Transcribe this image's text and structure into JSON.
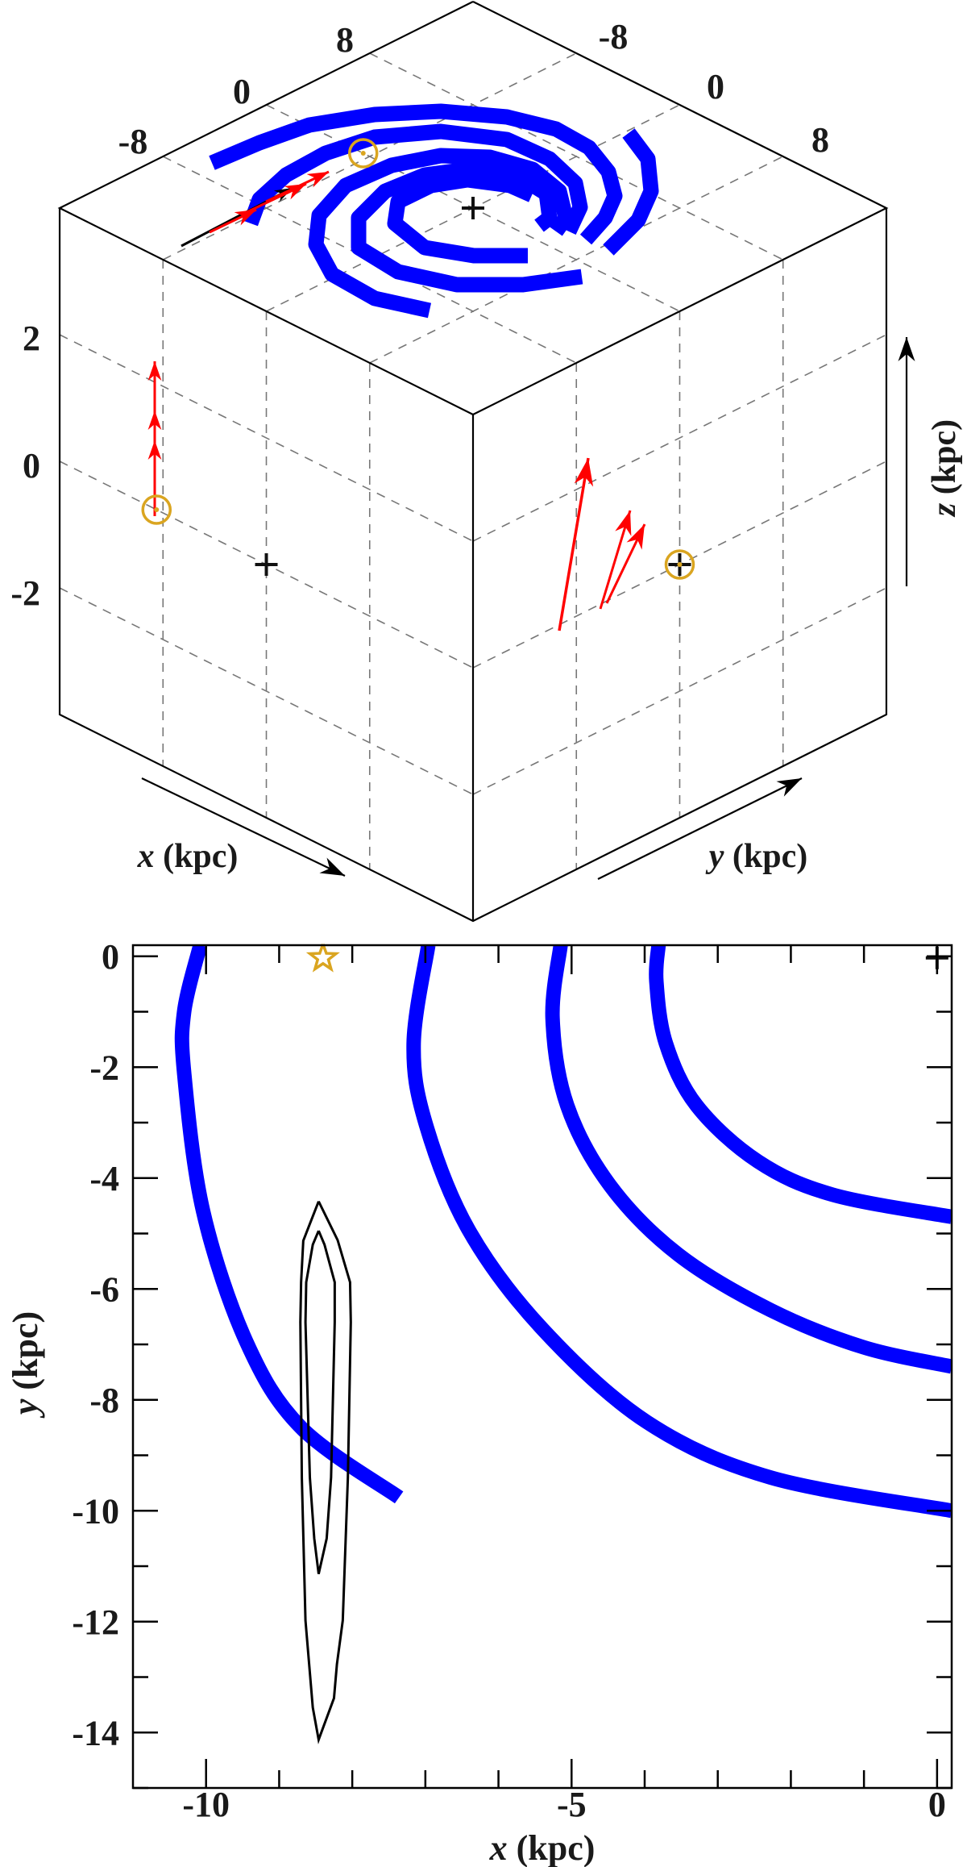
{
  "colors": {
    "spiral_arm": "#0000ff",
    "velocity_arrow": "#ff0000",
    "sun_marker": "#daa520",
    "grid": "#777777",
    "axis": "#000000"
  },
  "chart_data": [
    {
      "type": "scatter",
      "projection": "isometric 3D box",
      "axes": {
        "x": {
          "label_var": "x",
          "label_unit": "(kpc)",
          "ticks": [
            "-8",
            "0",
            "8"
          ],
          "range": [
            -16,
            16
          ]
        },
        "y": {
          "label_var": "y",
          "label_unit": "(kpc)",
          "ticks": [
            "-8",
            "0",
            "8"
          ],
          "range": [
            -16,
            16
          ]
        },
        "z": {
          "label_var": "z",
          "label_unit": "(kpc)",
          "ticks": [
            "2",
            "0",
            "-2"
          ],
          "range": [
            -4,
            4
          ]
        }
      },
      "grid": true,
      "markers": {
        "galactic_center": {
          "symbol": "plus-icon",
          "x": 0,
          "y": 0,
          "z": 0
        },
        "sun": {
          "symbol": "circle-icon",
          "x": -8.5,
          "y": 0,
          "z": 0
        }
      },
      "spiral_arms": 4
    },
    {
      "type": "line",
      "xlabel_var": "x",
      "xlabel_unit": "(kpc)",
      "ylabel_var": "y",
      "ylabel_unit": "(kpc)",
      "xlim": [
        -11,
        0.2
      ],
      "ylim": [
        -15,
        0.2
      ],
      "xticks": [
        -10,
        -5,
        0
      ],
      "xtick_labels": [
        "-10",
        "-5",
        "0"
      ],
      "yticks": [
        0,
        -2,
        -4,
        -6,
        -8,
        -10,
        -12,
        -14
      ],
      "ytick_labels": [
        "0",
        "-2",
        "-4",
        "-6",
        "-8",
        "-10",
        "-12",
        "-14"
      ],
      "grid": false,
      "spiral_arms": [
        {
          "x": [
            -10.08,
            -10.3,
            -10.3,
            -10.04,
            -9.45,
            -8.7,
            -7.36
          ],
          "y": [
            0.2,
            -1.0,
            -2.1,
            -4.6,
            -6.95,
            -8.5,
            -9.76
          ]
        },
        {
          "x": [
            -6.96,
            -7.16,
            -7.0,
            -6.41,
            -5.4,
            -3.97,
            -2.28,
            0.2
          ],
          "y": [
            0.2,
            -1.57,
            -3.0,
            -4.93,
            -6.72,
            -8.4,
            -9.4,
            -10.0
          ]
        },
        {
          "x": [
            -5.15,
            -5.26,
            -5.06,
            -4.47,
            -3.54,
            -2.28,
            -1.01,
            0.2
          ],
          "y": [
            0.2,
            -1.12,
            -2.69,
            -4.14,
            -5.38,
            -6.38,
            -7.05,
            -7.4
          ]
        },
        {
          "x": [
            -3.81,
            -3.84,
            -3.71,
            -3.29,
            -2.45,
            -1.43,
            0.2
          ],
          "y": [
            0.2,
            -0.45,
            -1.57,
            -2.69,
            -3.7,
            -4.3,
            -4.7
          ]
        }
      ],
      "contours": [
        {
          "x": [
            -8.46,
            -8.2,
            -8.03,
            -8.02,
            -8.06,
            -8.13,
            -8.21,
            -8.25,
            -8.46,
            -8.54,
            -8.64,
            -8.69,
            -8.71,
            -8.7,
            -8.67,
            -8.46
          ],
          "y": [
            -4.42,
            -5.12,
            -5.88,
            -6.6,
            -9.4,
            -11.98,
            -12.77,
            -13.38,
            -14.13,
            -13.55,
            -11.98,
            -9.4,
            -6.6,
            -5.88,
            -5.13,
            -4.42
          ]
        },
        {
          "x": [
            -8.46,
            -8.38,
            -8.24,
            -8.24,
            -8.29,
            -8.35,
            -8.46,
            -8.52,
            -8.58,
            -8.64,
            -8.63,
            -8.54,
            -8.46
          ],
          "y": [
            -4.95,
            -5.2,
            -5.88,
            -6.6,
            -9.4,
            -10.5,
            -11.14,
            -10.5,
            -9.4,
            -6.6,
            -5.88,
            -5.2,
            -4.95
          ]
        }
      ],
      "markers": {
        "sun": {
          "symbol": "star-icon",
          "x": -8.4,
          "y": 0
        },
        "galactic_center": {
          "symbol": "plus-icon",
          "x": 0,
          "y": 0
        }
      }
    }
  ]
}
